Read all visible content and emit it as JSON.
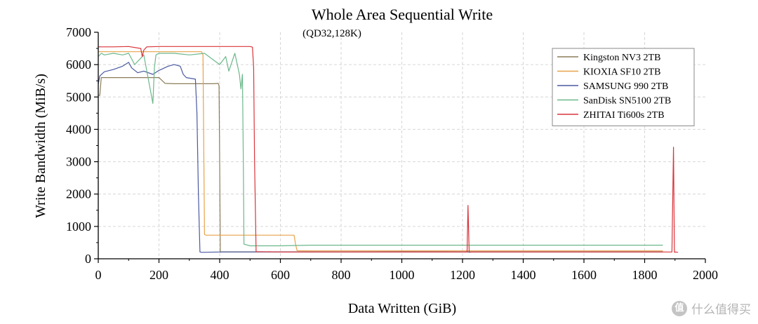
{
  "chart_data": {
    "type": "line",
    "title": "Whole Area Sequential Write",
    "subtitle": "(QD32,128K)",
    "xlabel": "Data Written (GiB)",
    "ylabel": "Write Bandwidth (MiB/s)",
    "xlim": [
      0,
      2000
    ],
    "ylim": [
      0,
      7000
    ],
    "xticks": [
      "0",
      "200",
      "400",
      "600",
      "800",
      "1000",
      "1200",
      "1400",
      "1600",
      "1800",
      "2000"
    ],
    "yticks": [
      "0",
      "1000",
      "2000",
      "3000",
      "4000",
      "5000",
      "6000",
      "7000"
    ],
    "grid": true,
    "legend_position": "top-right",
    "series": [
      {
        "name": "Kingston NV3 2TB",
        "color": "#8b7d5a",
        "x": [
          0,
          5,
          10,
          20,
          50,
          100,
          150,
          200,
          220,
          250,
          300,
          350,
          380,
          395,
          398,
          400,
          402,
          404,
          410,
          500,
          600,
          800,
          1000,
          1200,
          1400,
          1600,
          1860
        ],
        "y": [
          5050,
          5050,
          5600,
          5600,
          5600,
          5600,
          5600,
          5600,
          5420,
          5410,
          5410,
          5410,
          5410,
          5420,
          5350,
          3000,
          200,
          210,
          215,
          215,
          215,
          210,
          220,
          215,
          215,
          215,
          215
        ]
      },
      {
        "name": "KIOXIA SF10 2TB",
        "color": "#e8a34a",
        "x": [
          0,
          50,
          100,
          200,
          300,
          340,
          345,
          348,
          350,
          355,
          400,
          500,
          600,
          645,
          650,
          655,
          700,
          1000,
          1200,
          1500,
          1860
        ],
        "y": [
          6400,
          6400,
          6400,
          6400,
          6400,
          6400,
          6300,
          3000,
          750,
          730,
          730,
          730,
          730,
          730,
          450,
          250,
          245,
          245,
          245,
          245,
          245
        ]
      },
      {
        "name": "SAMSUNG 990 2TB",
        "color": "#4a5aa0",
        "x": [
          0,
          5,
          20,
          50,
          80,
          100,
          110,
          130,
          150,
          180,
          200,
          230,
          250,
          270,
          280,
          290,
          320,
          325,
          330,
          335,
          340,
          400,
          600,
          800,
          1000,
          1200,
          1400,
          1600,
          1860
        ],
        "y": [
          5400,
          5650,
          5780,
          5850,
          5950,
          6070,
          5900,
          5750,
          5800,
          5700,
          5820,
          5950,
          6000,
          5950,
          5700,
          5600,
          5550,
          4500,
          2000,
          210,
          200,
          210,
          210,
          210,
          210,
          210,
          210,
          210,
          210
        ]
      },
      {
        "name": "SanDisk SN5100 2TB",
        "color": "#6cb88b",
        "x": [
          0,
          10,
          20,
          50,
          80,
          100,
          120,
          150,
          180,
          185,
          190,
          200,
          250,
          300,
          350,
          400,
          420,
          430,
          450,
          465,
          470,
          475,
          478,
          480,
          500,
          550,
          600,
          700,
          800,
          900,
          1000,
          1100,
          1200,
          1300,
          1400,
          1500,
          1600,
          1700,
          1800,
          1860
        ],
        "y": [
          6250,
          6350,
          6300,
          6350,
          6300,
          6350,
          6000,
          6300,
          4800,
          5900,
          6300,
          6350,
          6350,
          6300,
          6350,
          6000,
          6250,
          5800,
          6350,
          5700,
          5250,
          5700,
          3000,
          450,
          400,
          400,
          400,
          420,
          420,
          420,
          420,
          420,
          420,
          420,
          420,
          420,
          420,
          420,
          420,
          420
        ]
      },
      {
        "name": "ZHITAI Ti600s 2TB",
        "color": "#d9353b",
        "x": [
          0,
          50,
          100,
          140,
          145,
          150,
          160,
          200,
          300,
          400,
          500,
          508,
          512,
          515,
          520,
          600,
          800,
          1000,
          1200,
          1215,
          1218,
          1222,
          1230,
          1400,
          1600,
          1800,
          1890,
          1895,
          1898,
          1902,
          1910
        ],
        "y": [
          6550,
          6550,
          6560,
          6500,
          6250,
          6450,
          6550,
          6560,
          6560,
          6560,
          6560,
          6540,
          5900,
          3000,
          220,
          210,
          210,
          210,
          210,
          210,
          1650,
          200,
          210,
          210,
          210,
          210,
          210,
          3450,
          200,
          210,
          200
        ]
      }
    ]
  },
  "watermark": {
    "badge": "值",
    "text": "什么值得买"
  }
}
